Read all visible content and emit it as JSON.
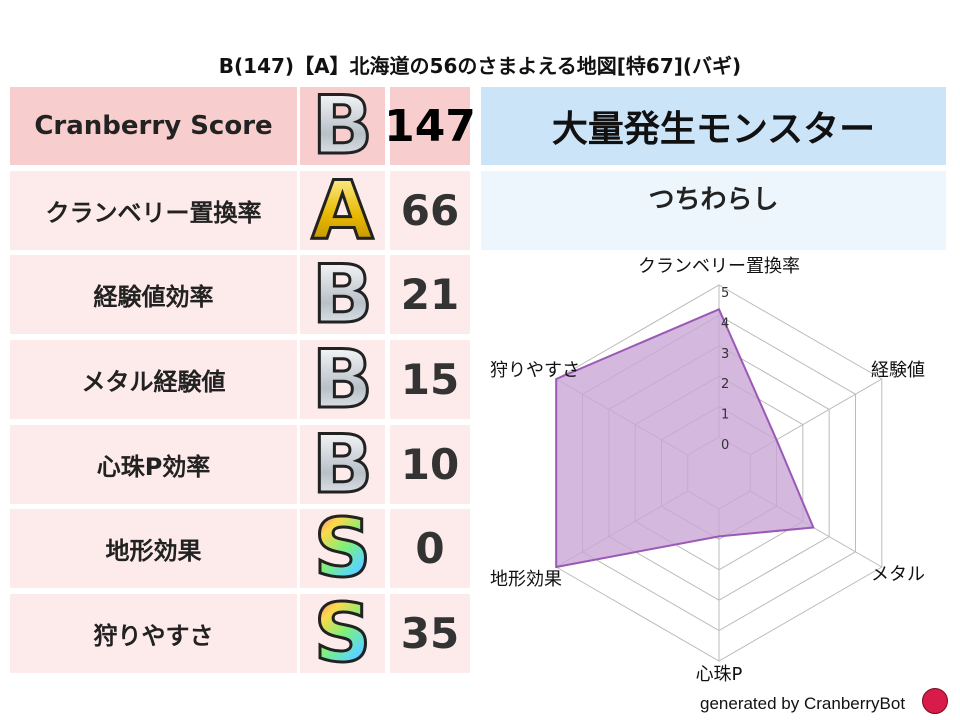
{
  "title": "B(147)【A】北海道の56のさまよえる地図[特67](バギ)",
  "table": {
    "header": {
      "label": "Cranberry Score",
      "grade": "B",
      "value": "147"
    },
    "rows": [
      {
        "label": "クランベリー置換率",
        "grade": "A",
        "value": "66"
      },
      {
        "label": "経験値効率",
        "grade": "B",
        "value": "21"
      },
      {
        "label": "メタル経験値",
        "grade": "B",
        "value": "15"
      },
      {
        "label": "心珠P効率",
        "grade": "B",
        "value": "10"
      },
      {
        "label": "地形効果",
        "grade": "S",
        "value": "0"
      },
      {
        "label": "狩りやすさ",
        "grade": "S",
        "value": "35"
      }
    ]
  },
  "monster": {
    "header": "大量発生モンスター",
    "name": "つちわらし"
  },
  "footer": {
    "text": "generated by CranberryBot",
    "logo": "cranberry-mascot"
  },
  "chart_data": {
    "type": "radar",
    "axes": [
      "クランベリー置換率",
      "経験値",
      "メタル",
      "心珠P",
      "地形効果",
      "狩りやすさ"
    ],
    "values": [
      4.2,
      1.0,
      2.4,
      0.9,
      5.0,
      5.0
    ],
    "rlim": [
      0,
      5
    ],
    "ticks": [
      "0",
      "1",
      "2",
      "3",
      "4",
      "5"
    ],
    "grid": true,
    "colors": {
      "fill": "#c9a6d6",
      "stroke": "#9b59b6",
      "grid": "#bbbbbb"
    }
  }
}
